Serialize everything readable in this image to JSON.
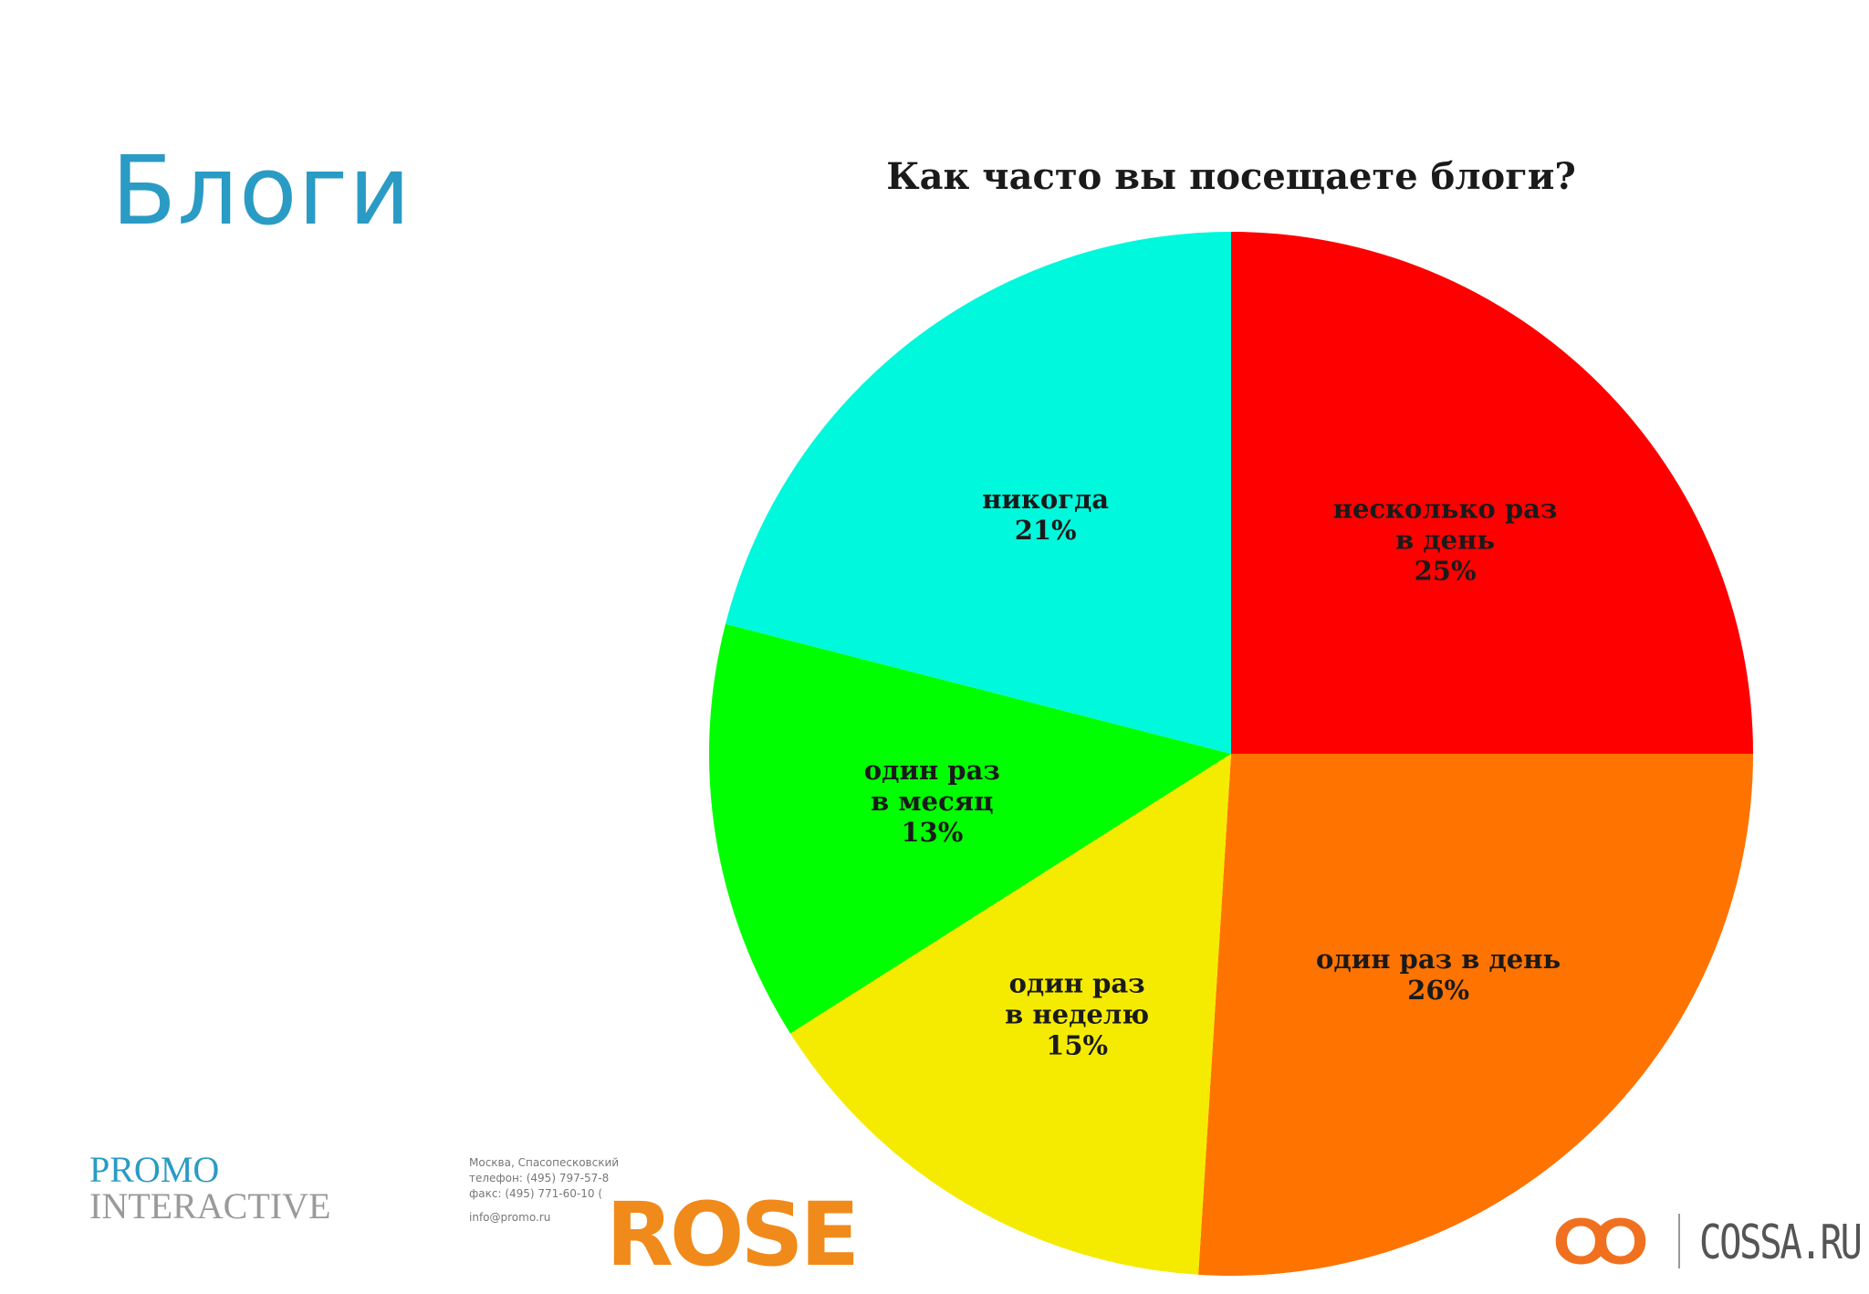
{
  "slide": {
    "title": "Блоги"
  },
  "chart_data": {
    "type": "pie",
    "title": "Как часто вы посещаете блоги?",
    "slices": [
      {
        "label": [
          "несколько раз",
          "в день"
        ],
        "pct_text": "25%",
        "value": 25,
        "color": "#ff0000"
      },
      {
        "label": [
          "один раз в день"
        ],
        "pct_text": "26%",
        "value": 26,
        "color": "#ff7300"
      },
      {
        "label": [
          "один раз",
          "в неделю"
        ],
        "pct_text": "15%",
        "value": 15,
        "color": "#f5eb00"
      },
      {
        "label": [
          "один раз",
          "в месяц"
        ],
        "pct_text": "13%",
        "value": 13,
        "color": "#00ff00"
      },
      {
        "label": [
          "никогда"
        ],
        "pct_text": "21%",
        "value": 21,
        "color": "#00f8dc"
      }
    ]
  },
  "footer": {
    "promo_line1": "PROMO",
    "promo_line2": "INTERACTIVE",
    "address": "Москва, Спасопесковский",
    "phone": "телефон: (495) 797-57-8",
    "fax": "факс: (495) 771-60-10 (",
    "email": "info@promo.ru",
    "rose": "ROSE",
    "cossa": "COSSA.RU"
  },
  "colors": {
    "title": "#2a9bc4",
    "rose": "#f08a1a",
    "cossa_icon": "#f07020"
  }
}
